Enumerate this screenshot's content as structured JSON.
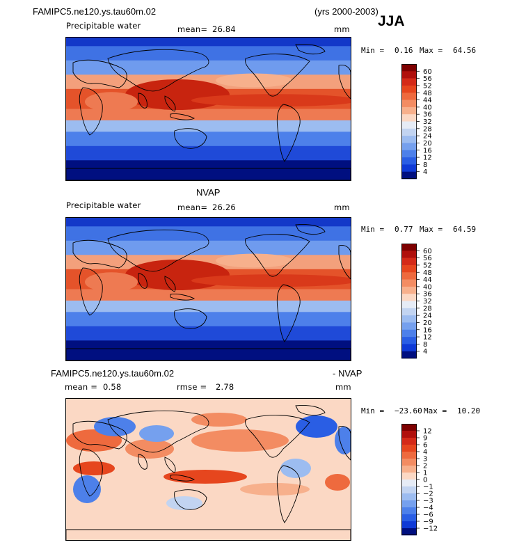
{
  "header": {
    "case_name": "FAMIPC5.ne120.ys.tau60m.02",
    "years": "(yrs 2000-2003)",
    "season": "JJA"
  },
  "panels": [
    {
      "title": "",
      "subtitle": "Precipitable water",
      "stat1_label": "mean=",
      "stat1_value": "26.84",
      "units": "mm",
      "min_label": "Min =",
      "min_value": "0.16",
      "max_label": "Max =",
      "max_value": "64.56",
      "colorbar_labels": [
        "60",
        "56",
        "52",
        "48",
        "44",
        "40",
        "36",
        "32",
        "28",
        "24",
        "20",
        "16",
        "12",
        "8",
        "4"
      ]
    },
    {
      "title": "NVAP",
      "subtitle": "Precipitable water",
      "stat1_label": "mean=",
      "stat1_value": "26.26",
      "units": "mm",
      "min_label": "Min =",
      "min_value": "0.77",
      "max_label": "Max =",
      "max_value": "64.59",
      "colorbar_labels": [
        "60",
        "56",
        "52",
        "48",
        "44",
        "40",
        "36",
        "32",
        "28",
        "24",
        "20",
        "16",
        "12",
        "8",
        "4"
      ]
    },
    {
      "title_left": "FAMIPC5.ne120.ys.tau60m.02",
      "title_right": "- NVAP",
      "stat1_label": "mean =",
      "stat1_value": "0.58",
      "stat2_label": "rmse =",
      "stat2_value": "2.78",
      "units": "mm",
      "min_label": "Min =",
      "min_value": "−23.60",
      "max_label": "Max =",
      "max_value": "10.20",
      "colorbar_labels": [
        "12",
        "9",
        "6",
        "4",
        "3",
        "2",
        "1",
        "0",
        "−1",
        "−2",
        "−3",
        "−4",
        "−6",
        "−9",
        "−12"
      ]
    }
  ],
  "colors": {
    "abs_scale": [
      "#7e0000",
      "#b0100c",
      "#d42a18",
      "#e6461e",
      "#ee6a3e",
      "#f38c62",
      "#f7b08c",
      "#fbd8c4",
      "#e6ecf6",
      "#c2d4f1",
      "#9cbcf0",
      "#75a0ee",
      "#4d80ea",
      "#2a5ee4",
      "#0f3ad6",
      "#000f80"
    ],
    "diff_scale": [
      "#7e0000",
      "#b0100c",
      "#d42a18",
      "#e6461e",
      "#ee6a3e",
      "#f38c62",
      "#f7b08c",
      "#fbd8c4",
      "#e6ecf6",
      "#c2d4f1",
      "#9cbcf0",
      "#75a0ee",
      "#4d80ea",
      "#2a5ee4",
      "#0f3ad6",
      "#000f80"
    ]
  },
  "chart_data": [
    {
      "type": "heatmap",
      "title": "Precipitable water",
      "units": "mm",
      "mean": 26.84,
      "min": 0.16,
      "max": 64.56,
      "contour_levels": [
        4,
        8,
        12,
        16,
        20,
        24,
        28,
        32,
        36,
        40,
        44,
        48,
        52,
        56,
        60
      ],
      "projection": "global cylindrical equidistant, Pacific-centered"
    },
    {
      "type": "heatmap",
      "title": "Precipitable water",
      "units": "mm",
      "mean": 26.26,
      "min": 0.77,
      "max": 64.59,
      "contour_levels": [
        4,
        8,
        12,
        16,
        20,
        24,
        28,
        32,
        36,
        40,
        44,
        48,
        52,
        56,
        60
      ],
      "projection": "global cylindrical equidistant, Pacific-centered"
    },
    {
      "type": "heatmap",
      "title": "FAMIPC5.ne120.ys.tau60m.02 - NVAP",
      "units": "mm",
      "mean": 0.58,
      "rmse": 2.78,
      "min": -23.6,
      "max": 10.2,
      "contour_levels": [
        -12,
        -9,
        -6,
        -4,
        -3,
        -2,
        -1,
        0,
        1,
        2,
        3,
        4,
        6,
        9,
        12
      ],
      "projection": "global cylindrical equidistant, Pacific-centered"
    }
  ]
}
